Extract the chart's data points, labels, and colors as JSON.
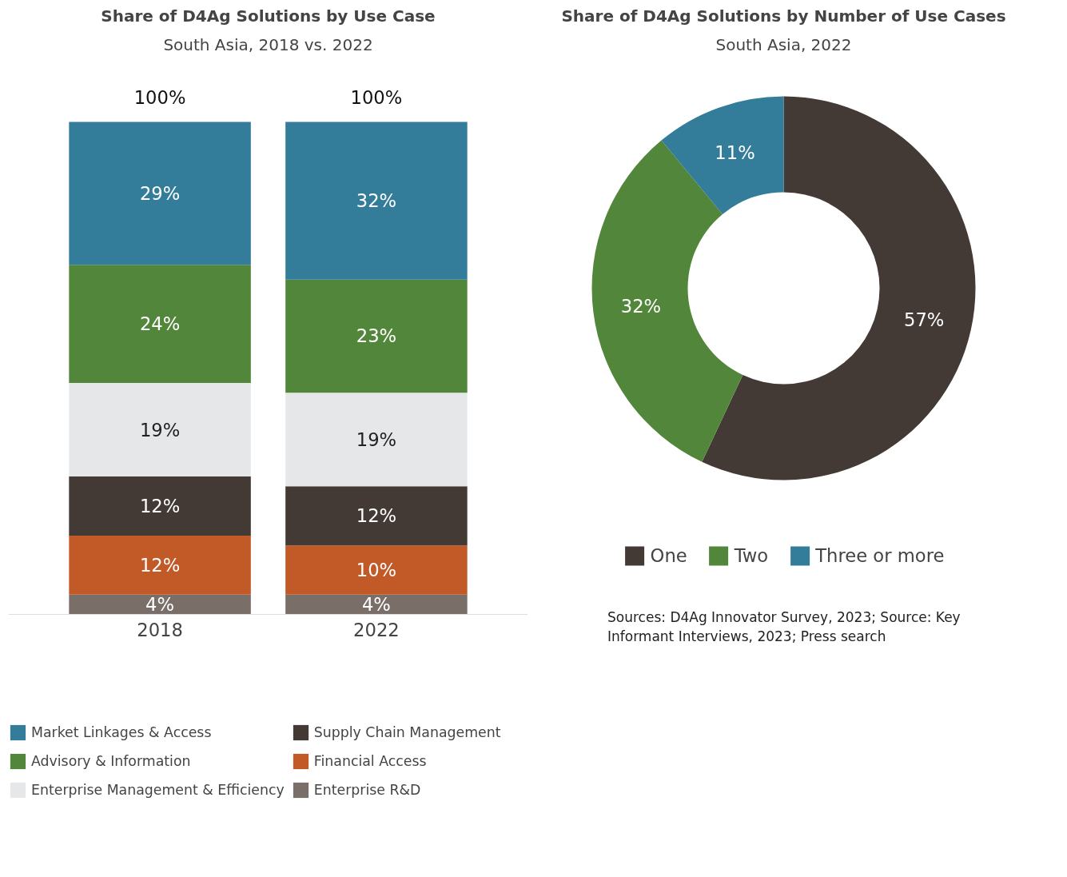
{
  "chart_data": [
    {
      "type": "bar",
      "title": "Share of D4Ag Solutions by Use Case",
      "subtitle": "South Asia, 2018 vs. 2022",
      "categories": [
        "2018",
        "2022"
      ],
      "stacked": true,
      "tick_labels": "x",
      "grid": false,
      "legend": "bottom",
      "totals": [
        "100%",
        "100%"
      ],
      "series": [
        {
          "name": "Enterprise R&D",
          "color": "#7a6e68",
          "values": [
            4,
            4
          ],
          "value_labels": [
            "4%",
            "4%"
          ]
        },
        {
          "name": "Financial Access",
          "color": "#c25a27",
          "values": [
            12,
            10
          ],
          "value_labels": [
            "12%",
            "10%"
          ]
        },
        {
          "name": "Supply Chain Management",
          "color": "#433a35",
          "values": [
            12,
            12
          ],
          "value_labels": [
            "12%",
            "12%"
          ]
        },
        {
          "name": "Enterprise Management & Efficiency",
          "color": "#e6e7e9",
          "values": [
            19,
            19
          ],
          "value_labels": [
            "19%",
            "19%"
          ]
        },
        {
          "name": "Advisory & Information",
          "color": "#52863a",
          "values": [
            24,
            23
          ],
          "value_labels": [
            "24%",
            "23%"
          ]
        },
        {
          "name": "Market Linkages & Access",
          "color": "#337d9a",
          "values": [
            29,
            32
          ],
          "value_labels": [
            "29%",
            "32%"
          ]
        }
      ]
    },
    {
      "type": "donut",
      "title": "Share of D4Ag Solutions by Number of Use Cases",
      "subtitle": "South Asia, 2022",
      "categories": [
        "One",
        "Two",
        "Three or more"
      ],
      "values": [
        57,
        32,
        11
      ],
      "value_labels": [
        "57%",
        "32%",
        "11%"
      ],
      "colors": [
        "#433a35",
        "#52863a",
        "#337d9a"
      ],
      "legend": "bottom",
      "annotations": [
        "Sources: D4Ag Innovator Survey, 2023; Source: Key Informant Interviews, 2023; Press search"
      ]
    }
  ]
}
